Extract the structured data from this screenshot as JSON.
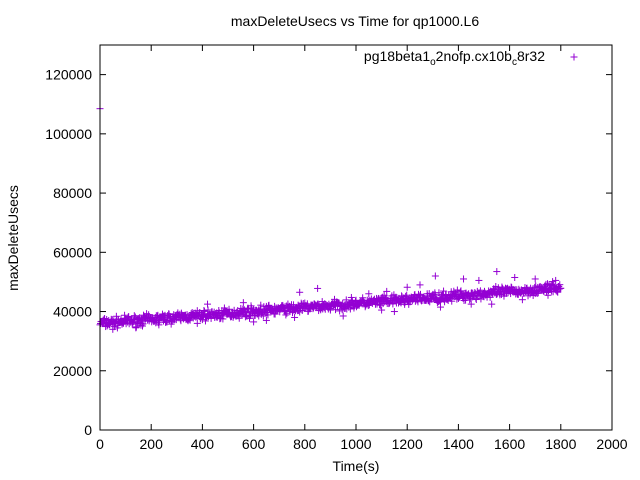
{
  "chart_data": {
    "type": "scatter",
    "title": "maxDeleteUsecs vs Time for qp1000.L6",
    "xlabel": "Time(s)",
    "ylabel": "maxDeleteUsecs",
    "xlim": [
      0,
      2000
    ],
    "ylim": [
      0,
      130000
    ],
    "x_ticks": [
      0,
      200,
      400,
      600,
      800,
      1000,
      1200,
      1400,
      1600,
      1800,
      2000
    ],
    "x_tick_labels": [
      "0",
      "200",
      "400",
      "600",
      "800",
      "1000",
      "1200",
      "1400",
      "1600",
      "1800",
      "2000"
    ],
    "y_ticks": [
      0,
      20000,
      40000,
      60000,
      80000,
      100000,
      120000
    ],
    "y_tick_labels": [
      "0",
      "20000",
      "40000",
      "60000",
      "80000",
      "100000",
      "120000"
    ],
    "grid": false,
    "legend_position": "top-right",
    "series": [
      {
        "name_parts": [
          "pg18beta1",
          "o",
          "2nofp.cx10b",
          "c",
          "8r32"
        ],
        "color": "#9400d3",
        "marker": "plus",
        "trend": {
          "x_start": 0,
          "x_end": 1800,
          "y_start": 36000,
          "y_end": 48000
        },
        "points": [
          [
            0,
            108500
          ],
          [
            300,
            38000
          ],
          [
            420,
            42500
          ],
          [
            560,
            43000
          ],
          [
            620,
            38500
          ],
          [
            710,
            42000
          ],
          [
            780,
            46500
          ],
          [
            850,
            47800
          ],
          [
            900,
            40500
          ],
          [
            1000,
            43800
          ],
          [
            1050,
            46000
          ],
          [
            1120,
            46800
          ],
          [
            1200,
            48200
          ],
          [
            1250,
            49000
          ],
          [
            1310,
            52000
          ],
          [
            1420,
            51000
          ],
          [
            1480,
            50500
          ],
          [
            1550,
            53500
          ],
          [
            1620,
            51500
          ],
          [
            1700,
            51000
          ],
          [
            1780,
            50500
          ],
          [
            50,
            34000
          ],
          [
            140,
            34500
          ],
          [
            230,
            35500
          ],
          [
            380,
            36000
          ],
          [
            480,
            37500
          ],
          [
            600,
            36500
          ],
          [
            650,
            37000
          ],
          [
            760,
            38000
          ],
          [
            950,
            38500
          ],
          [
            1100,
            40500
          ],
          [
            1150,
            40000
          ],
          [
            1330,
            41500
          ],
          [
            1450,
            42500
          ],
          [
            1530,
            42500
          ],
          [
            1650,
            44000
          ],
          [
            1750,
            45500
          ]
        ]
      }
    ]
  }
}
